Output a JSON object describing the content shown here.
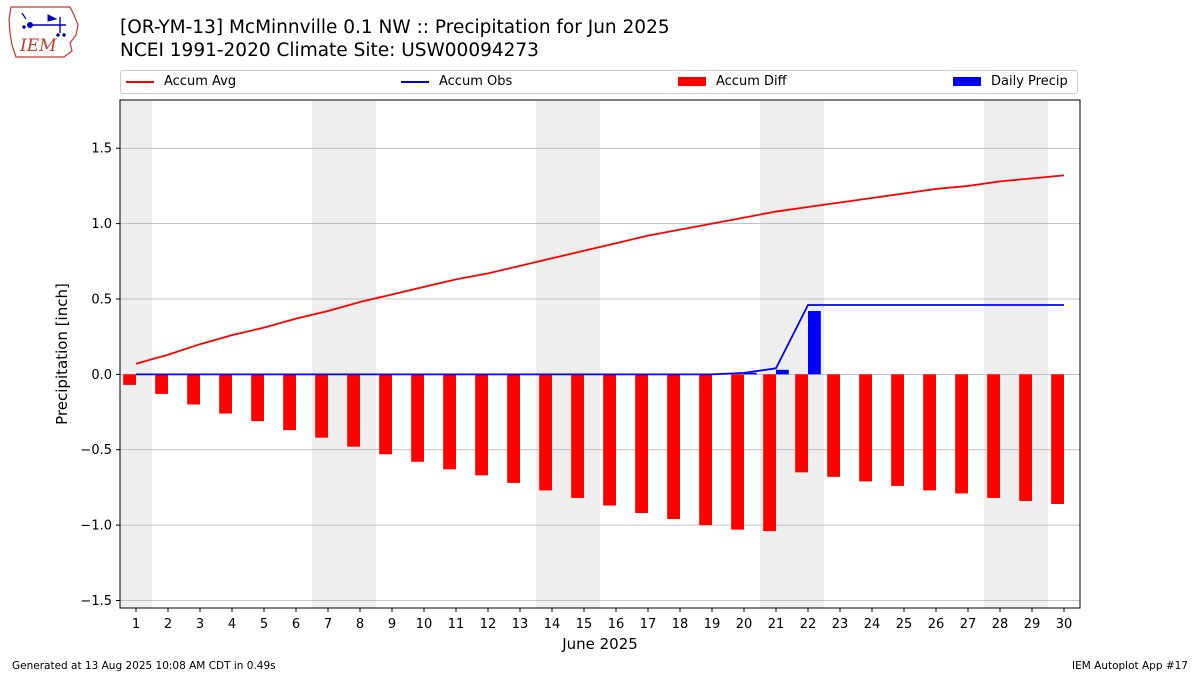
{
  "header": {
    "title_line1": "[OR-YM-13] McMinnville 0.1 NW :: Precipitation for Jun 2025",
    "title_line2": "NCEI 1991-2020 Climate Site: USW00094273"
  },
  "logo": {
    "text": "IEM",
    "icon": "iem-iowa-logo-icon"
  },
  "footer": {
    "generated": "Generated at 13 Aug 2025 10:08 AM CDT in 0.49s",
    "app": "IEM Autoplot App #17"
  },
  "colors": {
    "accum_avg": "#ff0000",
    "accum_obs": "#0000ff",
    "accum_diff": "#ff0000",
    "daily_precip": "#0000ff",
    "weekend_shade": "#eeeeee",
    "grid": "#b0b0b0"
  },
  "chart_data": {
    "type": "bar",
    "xlabel": "June 2025",
    "ylabel": "Precipitation [inch]",
    "xlim": [
      0.5,
      30.5
    ],
    "ylim": [
      -1.55,
      1.82
    ],
    "yticks": [
      -1.5,
      -1.0,
      -0.5,
      0.0,
      0.5,
      1.0,
      1.5
    ],
    "ytick_labels": [
      "−1.5",
      "−1.0",
      "−0.5",
      "0.0",
      "0.5",
      "1.0",
      "1.5"
    ],
    "grid": "y",
    "legend_placement": "top",
    "weekend_days": [
      1,
      7,
      8,
      14,
      15,
      21,
      22,
      28,
      29
    ],
    "days": [
      1,
      2,
      3,
      4,
      5,
      6,
      7,
      8,
      9,
      10,
      11,
      12,
      13,
      14,
      15,
      16,
      17,
      18,
      19,
      20,
      21,
      22,
      23,
      24,
      25,
      26,
      27,
      28,
      29,
      30
    ],
    "series": [
      {
        "name": "Accum Avg",
        "kind": "line",
        "values": [
          0.07,
          0.13,
          0.2,
          0.26,
          0.31,
          0.37,
          0.42,
          0.48,
          0.53,
          0.58,
          0.63,
          0.67,
          0.72,
          0.77,
          0.82,
          0.87,
          0.92,
          0.96,
          1.0,
          1.04,
          1.08,
          1.11,
          1.14,
          1.17,
          1.2,
          1.23,
          1.25,
          1.28,
          1.3,
          1.32
        ]
      },
      {
        "name": "Accum Obs",
        "kind": "line",
        "values": [
          0,
          0,
          0,
          0,
          0,
          0,
          0,
          0,
          0,
          0,
          0,
          0,
          0,
          0,
          0,
          0,
          0,
          0,
          0,
          0.01,
          0.04,
          0.46,
          0.46,
          0.46,
          0.46,
          0.46,
          0.46,
          0.46,
          0.46,
          0.46
        ]
      },
      {
        "name": "Accum Diff",
        "kind": "bar",
        "values": [
          -0.07,
          -0.13,
          -0.2,
          -0.26,
          -0.31,
          -0.37,
          -0.42,
          -0.48,
          -0.53,
          -0.58,
          -0.63,
          -0.67,
          -0.72,
          -0.77,
          -0.82,
          -0.87,
          -0.92,
          -0.96,
          -1.0,
          -1.03,
          -1.04,
          -0.65,
          -0.68,
          -0.71,
          -0.74,
          -0.77,
          -0.79,
          -0.82,
          -0.84,
          -0.86
        ]
      },
      {
        "name": "Daily Precip",
        "kind": "bar",
        "values": [
          0,
          0,
          0,
          0,
          0,
          0,
          0,
          0,
          0,
          0,
          0,
          0,
          0,
          0,
          0,
          0,
          0,
          0,
          0,
          0.01,
          0.03,
          0.42,
          0,
          0,
          0,
          0,
          0,
          0,
          0,
          0
        ]
      }
    ]
  }
}
